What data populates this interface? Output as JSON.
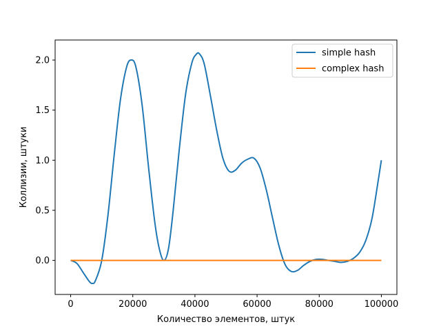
{
  "chart_data": {
    "type": "line",
    "xlabel": "Количество элементов, штук",
    "ylabel": "Коллизии, штуки",
    "xlim": [
      -5000,
      105000
    ],
    "ylim": [
      -0.34,
      2.2
    ],
    "xticks": [
      0,
      20000,
      40000,
      60000,
      80000,
      100000
    ],
    "xtick_labels": [
      "0",
      "20000",
      "40000",
      "60000",
      "80000",
      "100000"
    ],
    "yticks": [
      0.0,
      0.5,
      1.0,
      1.5,
      2.0
    ],
    "ytick_labels": [
      "0.0",
      "0.5",
      "1.0",
      "1.5",
      "2.0"
    ],
    "grid": false,
    "legend_position": "top-right",
    "series": [
      {
        "name": "simple hash",
        "color": "#1f77b4",
        "x": [
          0,
          2000,
          4000,
          6000,
          7000,
          8000,
          10000,
          12000,
          14000,
          16000,
          18000,
          19500,
          21000,
          23000,
          25000,
          27000,
          28500,
          30000,
          31500,
          33000,
          35000,
          37000,
          39000,
          40500,
          41500,
          43000,
          45000,
          47000,
          49000,
          51000,
          53000,
          55000,
          57000,
          59000,
          61000,
          63000,
          65000,
          67000,
          69000,
          71000,
          73000,
          75000,
          77000,
          79000,
          81000,
          83000,
          85000,
          87000,
          89000,
          91000,
          93000,
          95000,
          97000,
          99000,
          100000
        ],
        "values": [
          0.0,
          -0.03,
          -0.12,
          -0.21,
          -0.23,
          -0.2,
          0.0,
          0.45,
          1.05,
          1.6,
          1.93,
          2.0,
          1.93,
          1.55,
          0.95,
          0.4,
          0.12,
          0.0,
          0.12,
          0.5,
          1.12,
          1.66,
          1.97,
          2.06,
          2.06,
          1.96,
          1.64,
          1.3,
          1.02,
          0.89,
          0.9,
          0.97,
          1.01,
          1.02,
          0.92,
          0.7,
          0.42,
          0.15,
          -0.04,
          -0.11,
          -0.1,
          -0.05,
          -0.01,
          0.01,
          0.01,
          0.0,
          -0.01,
          -0.02,
          -0.01,
          0.02,
          0.08,
          0.2,
          0.42,
          0.8,
          1.0
        ]
      },
      {
        "name": "complex hash",
        "color": "#ff7f0e",
        "x": [
          0,
          100000
        ],
        "values": [
          0.0,
          0.0
        ]
      }
    ]
  }
}
